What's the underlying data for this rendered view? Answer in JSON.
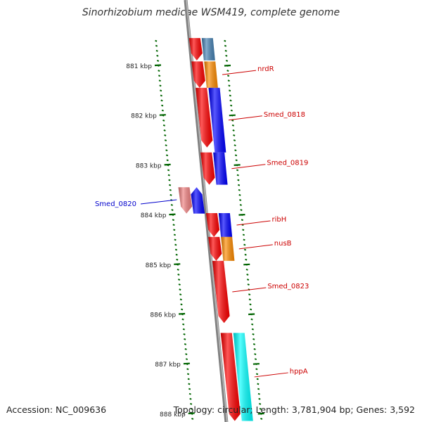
{
  "title": "Sinorhizobium medicae WSM419, complete genome",
  "footer": {
    "accession": "Accession: NC_009636",
    "stats": "Topology: circular; Length: 3,781,904 bp; Genes: 3,592"
  },
  "colors": {
    "forward_gene": "#ff0000",
    "reverse_gene_blue": "#0000ff",
    "reverse_gene_steel": "#4682b4",
    "reverse_gene_orange": "#ff8c00",
    "reverse_gene_cyan": "#00ffff",
    "forward_gene_pale": "#f08080",
    "backbone": "#808080",
    "tick": "#006400",
    "label_red": "#cc0000",
    "label_blue": "#0000cc"
  },
  "ruler": [
    {
      "label": "881 kbp",
      "value": 881
    },
    {
      "label": "882 kbp",
      "value": 882
    },
    {
      "label": "883 kbp",
      "value": 883
    },
    {
      "label": "884 kbp",
      "value": 884
    },
    {
      "label": "885 kbp",
      "value": 885
    },
    {
      "label": "886 kbp",
      "value": 886
    },
    {
      "label": "887 kbp",
      "value": 887
    },
    {
      "label": "888 kbp",
      "value": 888
    }
  ],
  "genes": [
    {
      "name": "",
      "strand": "reverse",
      "color": "#4682b4",
      "start": 880.45,
      "end": 880.9
    },
    {
      "name": "",
      "strand": "forward",
      "color": "#ff0000",
      "start": 880.45,
      "end": 880.9
    },
    {
      "name": "nrdR",
      "strand": "reverse",
      "color": "#ff8c00",
      "start": 880.92,
      "end": 881.45
    },
    {
      "name": "",
      "strand": "forward",
      "color": "#ff0000",
      "start": 880.92,
      "end": 881.45
    },
    {
      "name": "Smed_0818",
      "strand": "reverse",
      "color": "#0000ff",
      "start": 881.45,
      "end": 882.75
    },
    {
      "name": "",
      "strand": "forward",
      "color": "#ff0000",
      "start": 881.45,
      "end": 882.65
    },
    {
      "name": "Smed_0819",
      "strand": "reverse",
      "color": "#0000ff",
      "start": 882.75,
      "end": 883.4
    },
    {
      "name": "",
      "strand": "forward",
      "color": "#ff0000",
      "start": 882.75,
      "end": 883.4
    },
    {
      "name": "Smed_0820",
      "strand": "forward-displaced",
      "color": "#f08080",
      "start": 883.45,
      "end": 883.98
    },
    {
      "name": "",
      "strand": "reverse-displaced",
      "color": "#0000ff",
      "start": 883.45,
      "end": 883.98
    },
    {
      "name": "ribH",
      "strand": "reverse",
      "color": "#0000ff",
      "start": 883.97,
      "end": 884.45
    },
    {
      "name": "",
      "strand": "forward",
      "color": "#ff0000",
      "start": 883.97,
      "end": 884.45
    },
    {
      "name": "nusB",
      "strand": "reverse",
      "color": "#ff8c00",
      "start": 884.45,
      "end": 884.93
    },
    {
      "name": "",
      "strand": "forward",
      "color": "#ff0000",
      "start": 884.45,
      "end": 884.93
    },
    {
      "name": "Smed_0823",
      "strand": "forward",
      "color": "#ff0000",
      "start": 884.93,
      "end": 886.18
    },
    {
      "name": "hppA",
      "strand": "reverse",
      "color": "#00ffff",
      "start": 886.38,
      "end": 888.15
    },
    {
      "name": "",
      "strand": "forward",
      "color": "#ff0000",
      "start": 886.38,
      "end": 888.15
    }
  ],
  "labels": [
    {
      "text": "nrdR",
      "gene": 2,
      "color": "#cc0000"
    },
    {
      "text": "Smed_0818",
      "gene": 4,
      "color": "#cc0000"
    },
    {
      "text": "Smed_0819",
      "gene": 6,
      "color": "#cc0000"
    },
    {
      "text": "Smed_0820",
      "gene": 8,
      "color": "#0000cc"
    },
    {
      "text": "ribH",
      "gene": 10,
      "color": "#cc0000"
    },
    {
      "text": "nusB",
      "gene": 12,
      "color": "#cc0000"
    },
    {
      "text": "Smed_0823",
      "gene": 14,
      "color": "#cc0000"
    },
    {
      "text": "hppA",
      "gene": 15,
      "color": "#cc0000"
    }
  ]
}
